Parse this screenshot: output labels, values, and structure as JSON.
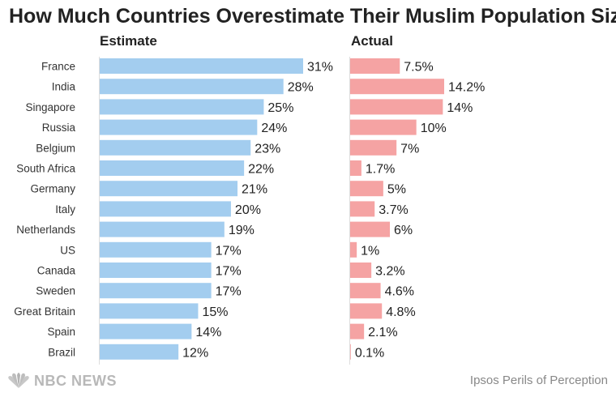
{
  "chart_data": {
    "type": "bar",
    "title": "How Much Countries Overestimate Their Muslim Population Sizes",
    "categories": [
      "France",
      "India",
      "Singapore",
      "Russia",
      "Belgium",
      "South Africa",
      "Germany",
      "Italy",
      "Netherlands",
      "US",
      "Canada",
      "Sweden",
      "Great Britain",
      "Spain",
      "Brazil"
    ],
    "series": [
      {
        "name": "Estimate",
        "values": [
          31,
          28,
          25,
          24,
          23,
          22,
          21,
          20,
          19,
          17,
          17,
          17,
          15,
          14,
          12
        ],
        "labels": [
          "31%",
          "28%",
          "25%",
          "24%",
          "23%",
          "22%",
          "21%",
          "20%",
          "19%",
          "17%",
          "17%",
          "17%",
          "15%",
          "14%",
          "12%"
        ],
        "color": "#a3cdef"
      },
      {
        "name": "Actual",
        "values": [
          7.5,
          14.2,
          14,
          10,
          7,
          1.7,
          5,
          3.7,
          6,
          1,
          3.2,
          4.6,
          4.8,
          2.1,
          0.1
        ],
        "labels": [
          "7.5%",
          "14.2%",
          "14%",
          "10%",
          "7%",
          "1.7%",
          "5%",
          "3.7%",
          "6%",
          "1%",
          "3.2%",
          "4.6%",
          "4.8%",
          "2.1%",
          "0.1%"
        ],
        "color": "#f5a3a3"
      }
    ],
    "grid": false,
    "legend": "panel titles above each bar group"
  },
  "footer": {
    "brand": "NBC NEWS",
    "source": "Ipsos Perils of Perception"
  },
  "colors": {
    "axis": "#dddddd",
    "brand_gray": "#b8b8b8"
  }
}
